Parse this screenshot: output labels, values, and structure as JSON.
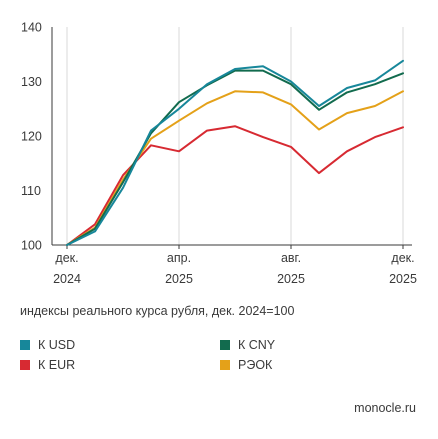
{
  "chart_data": {
    "type": "line",
    "x": [
      "Dec 2024",
      "Jan 2025",
      "Feb 2025",
      "Mar 2025",
      "Apr 2025",
      "May 2025",
      "Jun 2025",
      "Jul 2025",
      "Aug 2025",
      "Sep 2025",
      "Oct 2025",
      "Nov 2025",
      "Dec 2025"
    ],
    "x_ticks": [
      {
        "index": 0,
        "line1": "дек.",
        "line2": "2024"
      },
      {
        "index": 4,
        "line1": "апр.",
        "line2": "2025"
      },
      {
        "index": 8,
        "line1": "авг.",
        "line2": "2025"
      },
      {
        "index": 12,
        "line1": "дек.",
        "line2": "2025"
      }
    ],
    "ylim": [
      100,
      140
    ],
    "yticks": [
      100,
      110,
      120,
      130,
      140
    ],
    "grid": "vertical-at-ticks",
    "series": [
      {
        "name": "К USD",
        "color": "#17879a",
        "values": [
          100,
          102.5,
          110.5,
          121.0,
          125.0,
          129.5,
          132.3,
          132.8,
          130.0,
          125.5,
          128.8,
          130.2,
          133.8
        ]
      },
      {
        "name": "К EUR",
        "color": "#d72a32",
        "values": [
          100,
          103.8,
          112.8,
          118.3,
          117.2,
          121.0,
          121.8,
          119.8,
          118.0,
          113.2,
          117.2,
          119.8,
          121.6
        ]
      },
      {
        "name": "К CNY",
        "color": "#126b4e",
        "values": [
          100,
          103.0,
          111.5,
          120.5,
          126.2,
          129.3,
          132.0,
          132.0,
          129.5,
          124.8,
          128.0,
          129.5,
          131.5
        ]
      },
      {
        "name": "РЭОК",
        "color": "#e4a119",
        "values": [
          100,
          103.2,
          112.0,
          119.5,
          122.8,
          126.0,
          128.2,
          128.0,
          125.8,
          121.2,
          124.2,
          125.5,
          128.2
        ]
      }
    ],
    "caption": "индексы реального курса рубля, дек. 2024=100",
    "legend_placement": "bottom"
  },
  "source": "monocle.ru"
}
